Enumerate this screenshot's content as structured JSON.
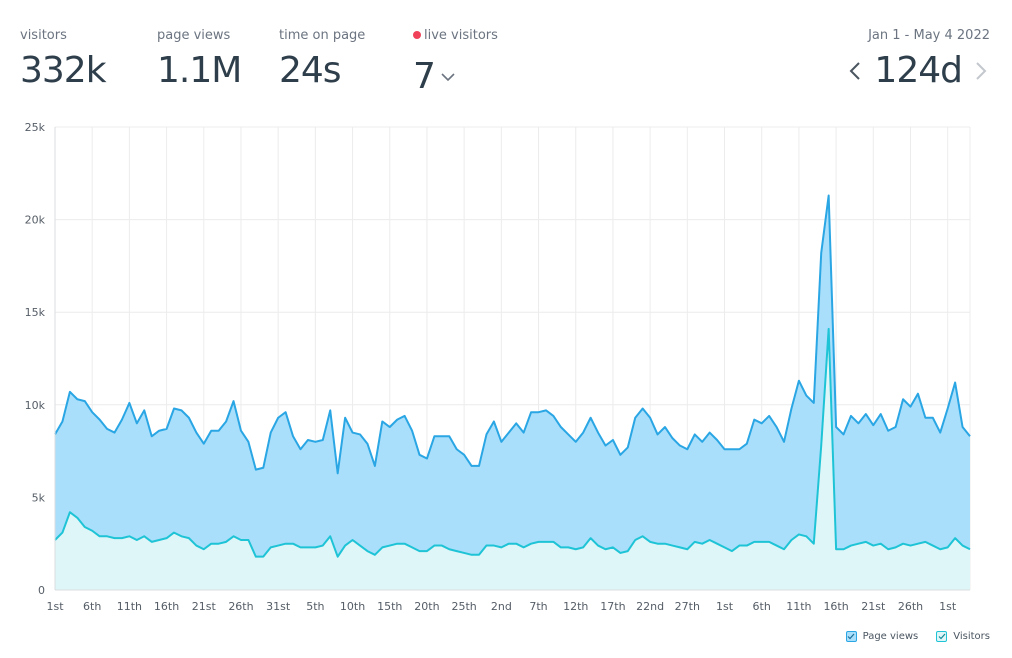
{
  "stats": {
    "visitors": {
      "label": "visitors",
      "value": "332k"
    },
    "page_views": {
      "label": "page views",
      "value": "1.1M"
    },
    "time_on_page": {
      "label": "time on page",
      "value": "24s"
    },
    "live_visitors": {
      "label": "live visitors",
      "value": "7"
    }
  },
  "range": {
    "label": "Jan 1 - May 4 2022",
    "value": "124d"
  },
  "legend": {
    "page_views": "Page views",
    "visitors": "Visitors"
  },
  "colors": {
    "page_views_line": "#2aa6e4",
    "page_views_fill": "#a9dffb",
    "visitors_line": "#1ec4d6",
    "visitors_fill": "#dff6f8",
    "grid": "#ececec",
    "live_dot": "#f0435a"
  },
  "chart_data": {
    "type": "area",
    "y_ticks": [
      "0",
      "5k",
      "10k",
      "15k",
      "20k",
      "25k"
    ],
    "ylim": [
      0,
      25000
    ],
    "x_tick_labels": [
      "1st",
      "6th",
      "11th",
      "16th",
      "21st",
      "26th",
      "31st",
      "5th",
      "10th",
      "15th",
      "20th",
      "25th",
      "2nd",
      "7th",
      "12th",
      "17th",
      "22nd",
      "27th",
      "1st",
      "6th",
      "11th",
      "16th",
      "21st",
      "26th",
      "1st"
    ],
    "x_tick_every": 5,
    "grid": true,
    "legend_position": "bottom-right",
    "series": [
      {
        "name": "Page views",
        "values": [
          8400,
          9100,
          10700,
          10300,
          10200,
          9600,
          9200,
          8700,
          8500,
          9200,
          10100,
          9000,
          9700,
          8300,
          8600,
          8700,
          9800,
          9700,
          9300,
          8500,
          7900,
          8600,
          8600,
          9100,
          10200,
          8600,
          8000,
          6500,
          6600,
          8500,
          9300,
          9600,
          8300,
          7600,
          8100,
          8000,
          8100,
          9700,
          6300,
          9300,
          8500,
          8400,
          7900,
          6700,
          9100,
          8800,
          9200,
          9400,
          8600,
          7300,
          7100,
          8300,
          8300,
          8300,
          7600,
          7300,
          6700,
          6700,
          8400,
          9100,
          8000,
          8500,
          9000,
          8500,
          9600,
          9600,
          9700,
          9400,
          8800,
          8400,
          8000,
          8500,
          9300,
          8500,
          7800,
          8100,
          7300,
          7700,
          9300,
          9800,
          9300,
          8400,
          8800,
          8200,
          7800,
          7600,
          8400,
          8000,
          8500,
          8100,
          7600,
          7600,
          7600,
          7900,
          9200,
          9000,
          9400,
          8800,
          8000,
          9800,
          11300,
          10500,
          10100,
          18200,
          21300,
          8800,
          8400,
          9400,
          9000,
          9500,
          8900,
          9500,
          8600,
          8800,
          10300,
          9900,
          10600,
          9300,
          9300,
          8500,
          9800,
          11200,
          8800,
          8300
        ],
        "notes": "daily values Jan 1 – May 4, 2022"
      },
      {
        "name": "Visitors",
        "values": [
          2700,
          3100,
          4200,
          3900,
          3400,
          3200,
          2900,
          2900,
          2800,
          2800,
          2900,
          2700,
          2900,
          2600,
          2700,
          2800,
          3100,
          2900,
          2800,
          2400,
          2200,
          2500,
          2500,
          2600,
          2900,
          2700,
          2700,
          1800,
          1800,
          2300,
          2400,
          2500,
          2500,
          2300,
          2300,
          2300,
          2400,
          2900,
          1800,
          2400,
          2700,
          2400,
          2100,
          1900,
          2300,
          2400,
          2500,
          2500,
          2300,
          2100,
          2100,
          2400,
          2400,
          2200,
          2100,
          2000,
          1900,
          1900,
          2400,
          2400,
          2300,
          2500,
          2500,
          2300,
          2500,
          2600,
          2600,
          2600,
          2300,
          2300,
          2200,
          2300,
          2800,
          2400,
          2200,
          2300,
          2000,
          2100,
          2700,
          2900,
          2600,
          2500,
          2500,
          2400,
          2300,
          2200,
          2600,
          2500,
          2700,
          2500,
          2300,
          2100,
          2400,
          2400,
          2600,
          2600,
          2600,
          2400,
          2200,
          2700,
          3000,
          2900,
          2500,
          7800,
          14100,
          2200,
          2200,
          2400,
          2500,
          2600,
          2400,
          2500,
          2200,
          2300,
          2500,
          2400,
          2500,
          2600,
          2400,
          2200,
          2300,
          2800,
          2400,
          2200
        ]
      }
    ]
  }
}
